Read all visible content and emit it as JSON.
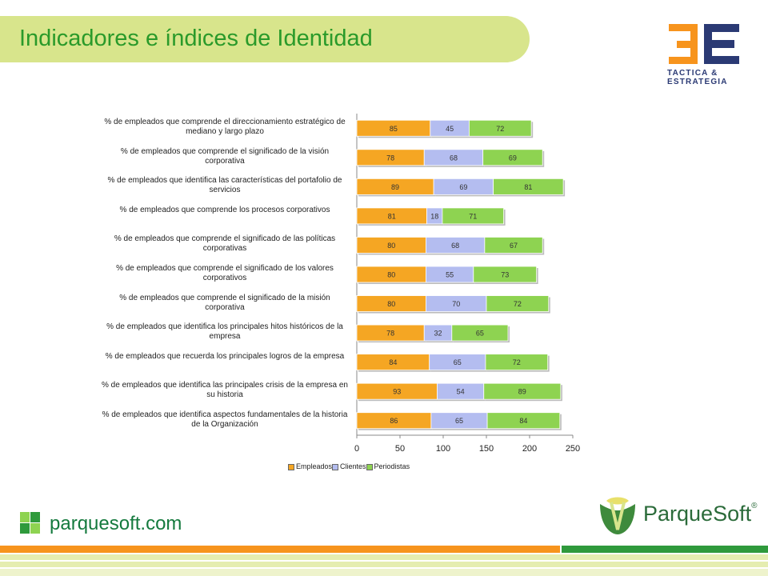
{
  "header": {
    "title": "Indicadores e índices de Identidad"
  },
  "logos": {
    "tactica_line1": "TACTICA &",
    "tactica_line2": "ESTRATEGIA",
    "parquesoft_url": "parquesoft.com",
    "parquesoft_brand": "ParqueSoft",
    "registered_mark": "®"
  },
  "colors": {
    "empleados": "#f5a623",
    "clientes": "#b4bdf0",
    "periodistas": "#8ed351",
    "title_band": "#d8e58c",
    "title_text": "#2a9a2a",
    "brand_orange": "#f7941d",
    "brand_blue": "#2b3a74",
    "brand_green": "#157a3e"
  },
  "chart_data": {
    "type": "bar",
    "orientation": "horizontal",
    "stacked": true,
    "categories": [
      "% de empleados que comprende el direccionamiento estratégico de mediano y largo plazo",
      "% de empleados que comprende el significado de la visión corporativa",
      "% de empleados que identifica las características del portafolio de servicios",
      "% de empleados que comprende los procesos corporativos",
      "% de empleados que comprende el significado de las políticas corporativas",
      "% de empleados que comprende el significado de los valores corporativos",
      "% de empleados que comprende el significado de la misión corporativa",
      "% de empleados que identifica los principales hitos históricos de la empresa",
      "% de empleados que recuerda los principales logros de la empresa",
      "% de empleados que identifica las principales crisis de la empresa en su historia",
      "% de empleados que identifica aspectos fundamentales de la historia de la Organización"
    ],
    "series": [
      {
        "name": "Empleados",
        "values": [
          85,
          78,
          89,
          81,
          80,
          80,
          80,
          78,
          84,
          93,
          86
        ]
      },
      {
        "name": "Clientes",
        "values": [
          45,
          68,
          69,
          18,
          68,
          55,
          70,
          32,
          65,
          54,
          65
        ]
      },
      {
        "name": "Periodistas",
        "values": [
          72,
          69,
          81,
          71,
          67,
          73,
          72,
          65,
          72,
          89,
          84
        ]
      }
    ],
    "xlim": [
      0,
      250
    ],
    "xticks": [
      "0",
      "50",
      "100",
      "150",
      "200",
      "250"
    ],
    "legend_position": "bottom",
    "grid": false
  }
}
